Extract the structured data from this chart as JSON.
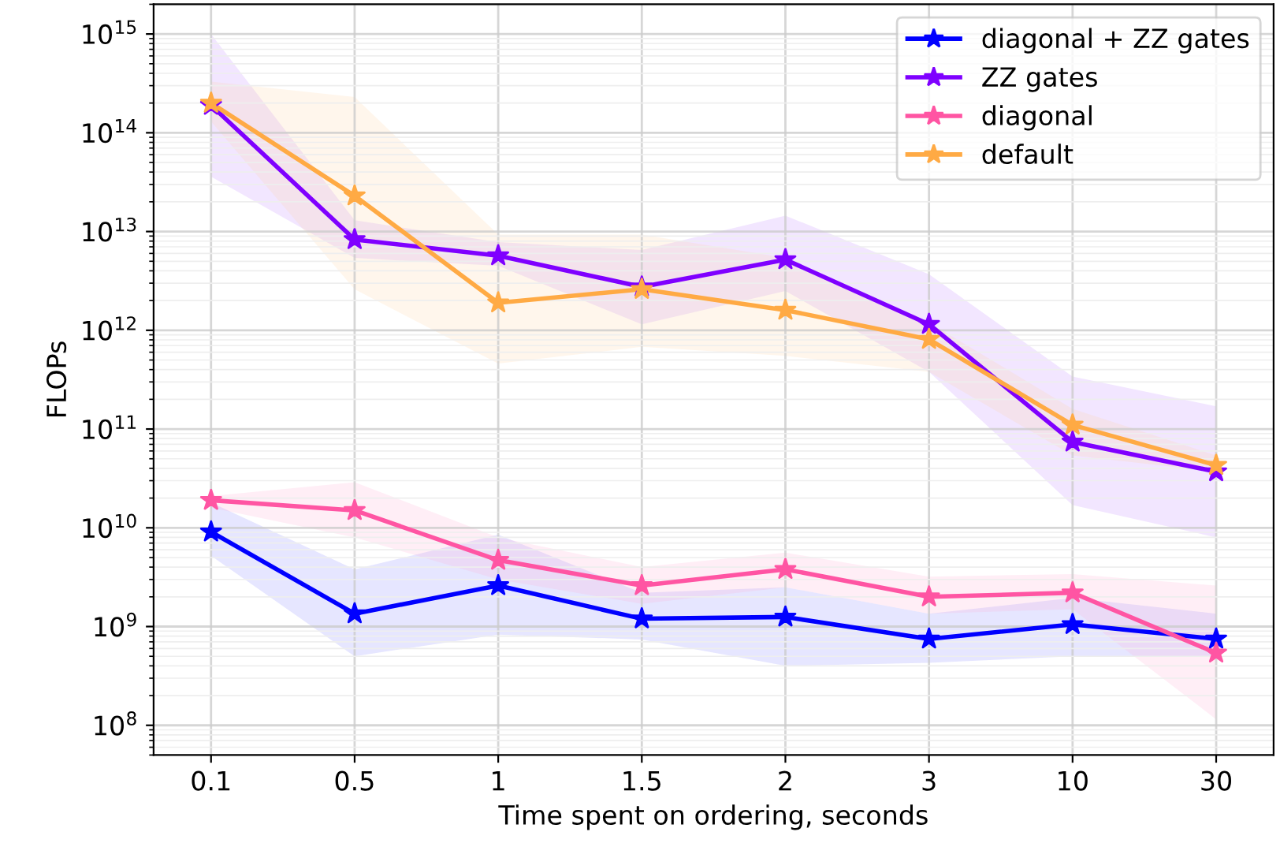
{
  "chart_data": {
    "type": "line",
    "xlabel": "Time spent on ordering, seconds",
    "ylabel": "FLOPs",
    "categories": [
      "0.1",
      "0.5",
      "1",
      "1.5",
      "2",
      "3",
      "10",
      "30"
    ],
    "log": "y",
    "ylim": [
      50000000.0,
      2000000000000000.0
    ],
    "yticks": [
      {
        "value": 100000000.0,
        "label": "10$^{8}$"
      },
      {
        "value": 1000000000.0,
        "label": "10$^{9}$"
      },
      {
        "value": 10000000000.0,
        "label": "10$^{10}$"
      },
      {
        "value": 100000000000.0,
        "label": "10$^{11}$"
      },
      {
        "value": 1000000000000.0,
        "label": "10$^{12}$"
      },
      {
        "value": 10000000000000.0,
        "label": "10$^{13}$"
      },
      {
        "value": 100000000000000.0,
        "label": "10$^{14}$"
      },
      {
        "value": 1000000000000000.0,
        "label": "10$^{15}$"
      }
    ],
    "grid": true,
    "legend": "top right",
    "marker": "star",
    "line_style": "solid",
    "series": [
      {
        "name": "diagonal + ZZ gates",
        "color": "#0000ff",
        "values": [
          9100000000.0,
          1350000000.0,
          2600000000.0,
          1200000000.0,
          1250000000.0,
          750000000.0,
          1050000000.0,
          750000000.0
        ],
        "lower": [
          5200000000.0,
          500000000.0,
          830000000.0,
          740000000.0,
          400000000.0,
          430000000.0,
          500000000.0,
          500000000.0
        ],
        "upper": [
          18000000000.0,
          3800000000.0,
          8500000000.0,
          2200000000.0,
          2500000000.0,
          1350000000.0,
          1950000000.0,
          1350000000.0
        ]
      },
      {
        "name": "ZZ gates",
        "color": "#7f00ff",
        "values": [
          190000000000000.0,
          8300000000000.0,
          5700000000000.0,
          2750000000000.0,
          5200000000000.0,
          1150000000000.0,
          74000000000.0,
          37000000000.0
        ],
        "lower": [
          36000000000000.0,
          5400000000000.0,
          4500000000000.0,
          1150000000000.0,
          2500000000000.0,
          380000000000.0,
          17000000000.0,
          8000000000.0
        ],
        "upper": [
          1000000000000000.0,
          13000000000000.0,
          7800000000000.0,
          6500000000000.0,
          14500000000000.0,
          3700000000000.0,
          340000000000.0,
          170000000000.0
        ]
      },
      {
        "name": "diagonal",
        "color": "#ff55a3",
        "values": [
          19000000000.0,
          15000000000.0,
          4700000000.0,
          2600000000.0,
          3800000000.0,
          2000000000.0,
          2200000000.0,
          540000000.0
        ],
        "lower": [
          16000000000.0,
          8000000000.0,
          3000000000.0,
          1700000000.0,
          2500000000.0,
          1350000000.0,
          1500000000.0,
          115000000.0
        ],
        "upper": [
          21000000000.0,
          29000000000.0,
          8000000000.0,
          4000000000.0,
          5600000000.0,
          3200000000.0,
          3400000000.0,
          2600000000.0
        ]
      },
      {
        "name": "default",
        "color": "#ffaa44",
        "values": [
          200000000000000.0,
          23000000000000.0,
          1900000000000.0,
          2600000000000.0,
          1600000000000.0,
          810000000000.0,
          110000000000.0,
          43000000000.0
        ],
        "lower": [
          130000000000000.0,
          2600000000000.0,
          460000000000.0,
          680000000000.0,
          550000000000.0,
          380000000000.0,
          54000000000.0,
          37000000000.0
        ],
        "upper": [
          330000000000000.0,
          230000000000000.0,
          9300000000000.0,
          9300000000000.0,
          5400000000000.0,
          1200000000000.0,
          160000000000.0,
          54000000000.0
        ]
      }
    ]
  }
}
